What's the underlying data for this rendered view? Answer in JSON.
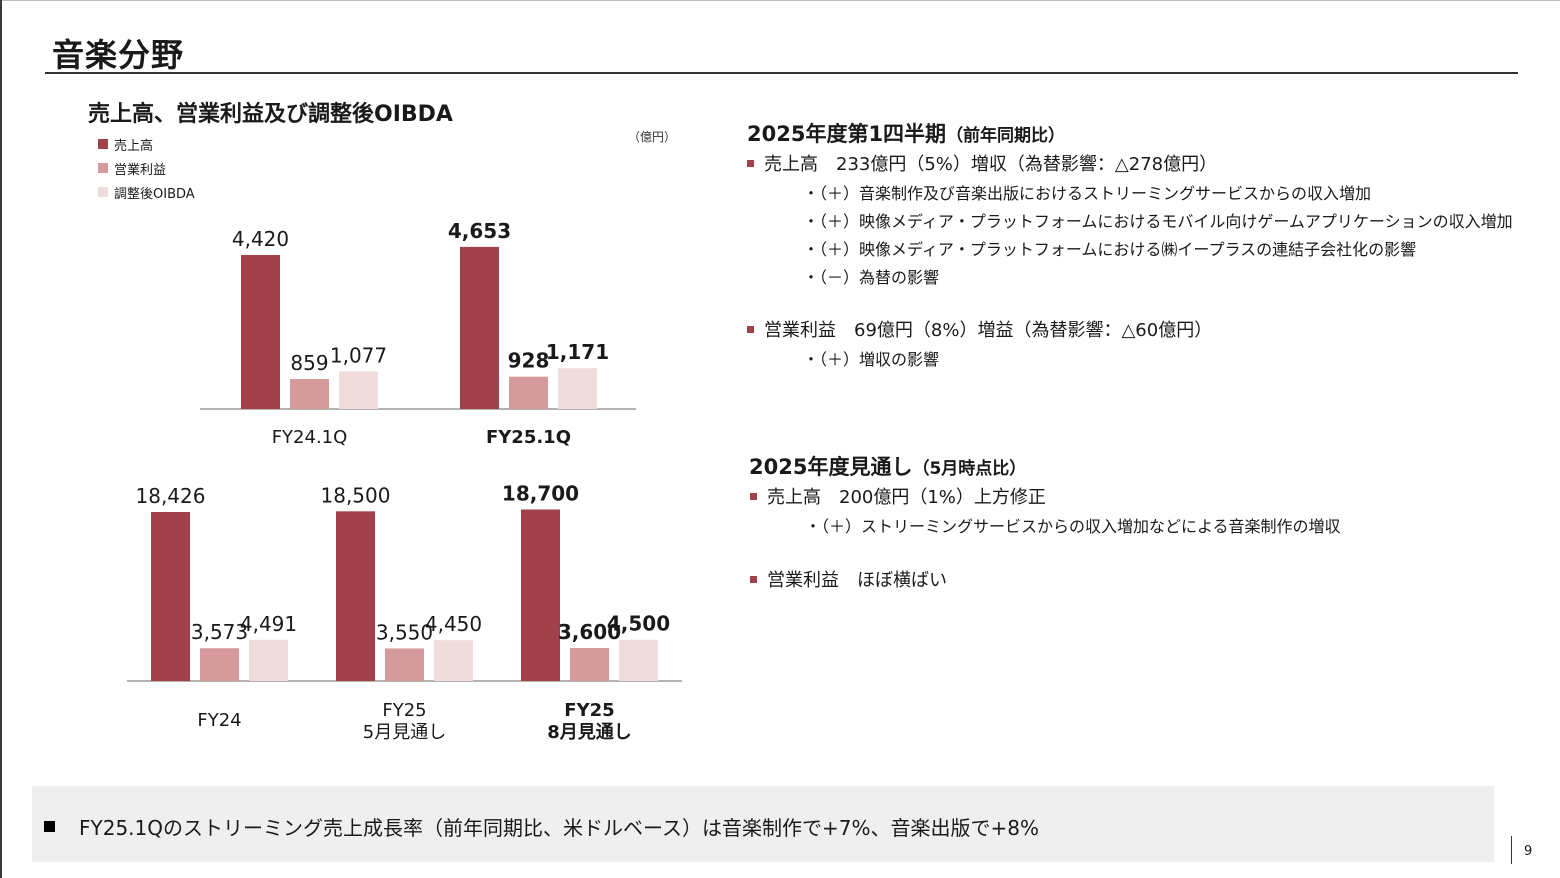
{
  "page": {
    "title": "音楽分野",
    "page_number": "9"
  },
  "chart_section": {
    "title": "売上高、営業利益及び調整後OIBDA",
    "unit": "（億円）",
    "legend": [
      "売上高",
      "営業利益",
      "調整後OIBDA"
    ],
    "colors": [
      "#a0414b",
      "#d79a9c",
      "#f0dcdc"
    ]
  },
  "chart_data": [
    {
      "type": "bar",
      "categories": [
        "FY24.1Q",
        "FY25.1Q"
      ],
      "category_labels": [
        [
          "FY24.1Q"
        ],
        [
          "FY25.1Q"
        ]
      ],
      "bold_categories": [
        false,
        true
      ],
      "series": [
        {
          "name": "売上高",
          "values": [
            4420,
            4653
          ]
        },
        {
          "name": "営業利益",
          "values": [
            859,
            928
          ]
        },
        {
          "name": "調整後OIBDA",
          "values": [
            1077,
            1171
          ]
        }
      ],
      "value_labels": [
        [
          "4,420",
          "859",
          "1,077"
        ],
        [
          "4,653",
          "928",
          "1,171"
        ]
      ]
    },
    {
      "type": "bar",
      "categories": [
        "FY24",
        "FY25 5月見通し",
        "FY25 8月見通し"
      ],
      "category_labels": [
        [
          "FY24"
        ],
        [
          "FY25",
          "5月見通し"
        ],
        [
          "FY25",
          "8月見通し"
        ]
      ],
      "bold_categories": [
        false,
        false,
        true
      ],
      "series": [
        {
          "name": "売上高",
          "values": [
            18426,
            18500,
            18700
          ]
        },
        {
          "name": "営業利益",
          "values": [
            3573,
            3550,
            3600
          ]
        },
        {
          "name": "調整後OIBDA",
          "values": [
            4491,
            4450,
            4500
          ]
        }
      ],
      "value_labels": [
        [
          "18,426",
          "3,573",
          "4,491"
        ],
        [
          "18,500",
          "3,550",
          "4,450"
        ],
        [
          "18,700",
          "3,600",
          "4,500"
        ]
      ]
    }
  ],
  "q1": {
    "heading": "2025年度第1四半期",
    "heading_note": "（前年同期比）",
    "sales": "売上高　233億円（5%）増収（為替影響：△278億円）",
    "sales_items": [
      "・（＋）音楽制作及び音楽出版におけるストリーミングサービスからの収入増加",
      "・（＋）映像メディア・プラットフォームにおけるモバイル向けゲームアプリケーションの収入増加",
      "・（＋）映像メディア・プラットフォームにおける㈱イープラスの連結子会社化の影響",
      "・（－）為替の影響"
    ],
    "op": "営業利益　69億円（8%）増益（為替影響：△60億円）",
    "op_items": [
      "・（＋）増収の影響"
    ]
  },
  "outlook": {
    "heading": "2025年度見通し",
    "heading_note": "（5月時点比）",
    "sales": "売上高　200億円（1%）上方修正",
    "sales_items": [
      "・（＋）ストリーミングサービスからの収入増加などによる音楽制作の増収"
    ],
    "op": "営業利益　ほぼ横ばい"
  },
  "footer": {
    "text": "FY25.1Qのストリーミング売上成長率（前年同期比、米ドルベース）は音楽制作で+7%、音楽出版で+8%"
  }
}
